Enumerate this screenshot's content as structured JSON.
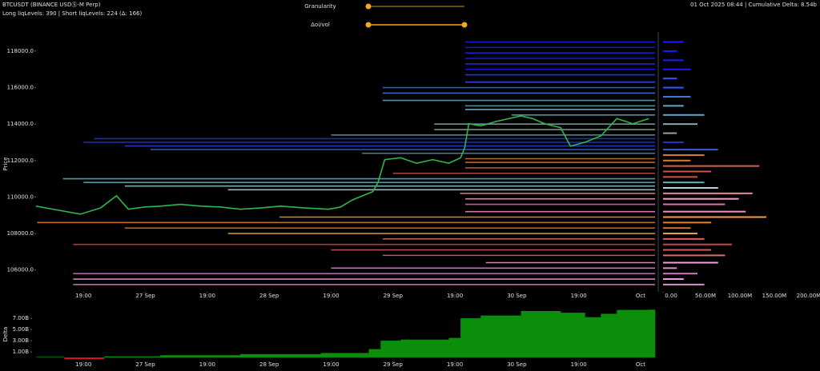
{
  "header": {
    "symbol": "BTCUSDT (BINANCE USDⓈ-M Perp)",
    "levels_info": "Long liqLevels: 390 | Short liqLevels: 224 (Δ: 166)",
    "timestamp_info": "01 Oct 2025 08:44 | Cumulative Delta: 8.54b"
  },
  "controls": [
    {
      "label": "Granularity"
    },
    {
      "label": "Δoi/vol"
    }
  ],
  "chart_data": [
    {
      "type": "line",
      "y_label": "Price",
      "xlim": [
        2.8,
        122.8
      ],
      "ylim": [
        104800,
        119050
      ],
      "xticks": [
        {
          "value": 12,
          "label": "19:00"
        },
        {
          "value": 24,
          "label": "27 Sep"
        },
        {
          "value": 36,
          "label": "19:00"
        },
        {
          "value": 48,
          "label": "28 Sep"
        },
        {
          "value": 60,
          "label": "19:00"
        },
        {
          "value": 72,
          "label": "29 Sep"
        },
        {
          "value": 84,
          "label": "19:00"
        },
        {
          "value": 96,
          "label": "30 Sep"
        },
        {
          "value": 108,
          "label": "19:00"
        },
        {
          "value": 120,
          "label": "Oct"
        }
      ],
      "yticks": [
        {
          "value": 106000,
          "label": "106000.0"
        },
        {
          "value": 108000,
          "label": "108000.0"
        },
        {
          "value": 110000,
          "label": "110000.0"
        },
        {
          "value": 112000,
          "label": "112000.0"
        },
        {
          "value": 114000,
          "label": "114000.0"
        },
        {
          "value": 116000,
          "label": "116000.0"
        },
        {
          "value": 118000,
          "label": "118000.0"
        }
      ],
      "x": [
        2.8,
        6.7,
        11.4,
        15.3,
        18.4,
        20.7,
        23.8,
        26.9,
        30.8,
        34.7,
        38.6,
        42.4,
        46.3,
        50.2,
        54.9,
        59.5,
        61.8,
        64.2,
        68.1,
        69.1,
        70.4,
        71.9,
        73.5,
        76.6,
        79.7,
        82.8,
        85.1,
        85.9,
        86.7,
        89.0,
        92.1,
        96.8,
        99.1,
        101.4,
        104.5,
        106.4,
        109.2,
        112.3,
        115.4,
        118.5,
        121.6
      ],
      "series": [
        {
          "color": "#2fb84a",
          "values": [
            109500,
            109300,
            109060,
            109400,
            110070,
            109330,
            109450,
            109500,
            109600,
            109500,
            109450,
            109330,
            109400,
            109500,
            109400,
            109330,
            109450,
            109850,
            110300,
            110800,
            112050,
            112100,
            112150,
            111850,
            112050,
            111850,
            112150,
            112700,
            114020,
            113900,
            114150,
            114450,
            114300,
            114020,
            113800,
            112790,
            113000,
            113350,
            114300,
            114020,
            114300
          ]
        }
      ],
      "levels": {
        "prices": [
          118500,
          118200,
          117900,
          117600,
          117300,
          117000,
          116700,
          116300,
          116000,
          115700,
          115300,
          115000,
          114800,
          114500,
          114000,
          113700,
          113400,
          113200,
          113000,
          112800,
          112600,
          112400,
          112100,
          111900,
          111600,
          111300,
          111000,
          110800,
          110600,
          110400,
          110200,
          109900,
          109600,
          109200,
          108900,
          108600,
          108300,
          108000,
          107700,
          107400,
          107100,
          106800,
          106400,
          106100,
          105800,
          105500,
          105200
        ],
        "starts": [
          86,
          86,
          86,
          86,
          86,
          86,
          86,
          86,
          70,
          70,
          70,
          86,
          86,
          95,
          80,
          80,
          60,
          14,
          12,
          20,
          25,
          66,
          86,
          86,
          86,
          72,
          8,
          12,
          20,
          40,
          85,
          86,
          86,
          86,
          50,
          3,
          20,
          40,
          70,
          10,
          60,
          70,
          90,
          60,
          10,
          10,
          10
        ],
        "colors": [
          "#1a1aff",
          "#1a1aff",
          "#2020f0",
          "#1a1aff",
          "#2a2af5",
          "#1a1aff",
          "#2a3aff",
          "#3355ff",
          "#3a66ee",
          "#4477dd",
          "#5fa8c8",
          "#5fa8c8",
          "#88bbcc",
          "#5fa8c8",
          "#88aaaa",
          "#8aa89a",
          "#6f8fa0",
          "#2233cc",
          "#2233cc",
          "#2a3fd0",
          "#3a5fcd",
          "#6f7fa0",
          "#e07a2a",
          "#e07a2a",
          "#d06040",
          "#d05050",
          "#5fb0c0",
          "#5fb0c0",
          "#8fc7d0",
          "#c0d0e0",
          "#e88aa0",
          "#f0a0c8",
          "#e070b0",
          "#f090c0",
          "#ff9a30",
          "#e0801e",
          "#d07030",
          "#f0a040",
          "#e06060",
          "#c84848",
          "#d05a5a",
          "#e06a6a",
          "#f0a0d8",
          "#e888d0",
          "#d870c0",
          "#f0a0e0",
          "#e090d0"
        ]
      }
    },
    {
      "type": "hbar",
      "xlim": [
        0,
        228000000
      ],
      "ylim": [
        104800,
        119050
      ],
      "xticks": [
        {
          "value": 0,
          "label": "0.00"
        },
        {
          "value": 50000000,
          "label": "50.00M"
        },
        {
          "value": 100000000,
          "label": "100.00M"
        },
        {
          "value": 150000000,
          "label": "150.00M"
        },
        {
          "value": 200000000,
          "label": "200.00M"
        }
      ],
      "prices": [
        105200,
        105500,
        105800,
        106100,
        106400,
        106800,
        107100,
        107400,
        107700,
        108000,
        108300,
        108600,
        108900,
        109200,
        109600,
        109900,
        110200,
        110500,
        110800,
        111100,
        111400,
        111700,
        112000,
        112300,
        112600,
        113000,
        113500,
        114000,
        114500,
        115000,
        115500,
        116000,
        116500,
        117000,
        117500,
        118000,
        118500
      ],
      "values": [
        60000000,
        30000000,
        50000000,
        20000000,
        80000000,
        90000000,
        70000000,
        100000000,
        60000000,
        50000000,
        40000000,
        70000000,
        150000000,
        120000000,
        90000000,
        110000000,
        130000000,
        80000000,
        60000000,
        50000000,
        70000000,
        140000000,
        40000000,
        60000000,
        80000000,
        30000000,
        20000000,
        50000000,
        60000000,
        30000000,
        40000000,
        30000000,
        20000000,
        40000000,
        30000000,
        20000000,
        30000000
      ],
      "colors": [
        "#e090d0",
        "#f0a0e0",
        "#d870c0",
        "#e888d0",
        "#f0a0d8",
        "#e06a6a",
        "#d05a5a",
        "#c84848",
        "#e06060",
        "#f0a040",
        "#d07030",
        "#e0801e",
        "#ff9a30",
        "#f090c0",
        "#e070b0",
        "#f0a0c8",
        "#e88aa0",
        "#c0d0e0",
        "#5fb0c0",
        "#d05050",
        "#d05050",
        "#d06040",
        "#e07a2a",
        "#e07a2a",
        "#3a5fcd",
        "#2233cc",
        "#8aa89a",
        "#88aaaa",
        "#5fa8c8",
        "#5fa8c8",
        "#4477dd",
        "#3355ff",
        "#3355ff",
        "#1a1aff",
        "#1a1aff",
        "#1a1aff",
        "#1a1aff"
      ]
    },
    {
      "type": "step",
      "y_label": "Delta",
      "xlim": [
        2.8,
        122.8
      ],
      "ylim": [
        -0.7,
        9.3
      ],
      "xticks": [
        {
          "value": 12,
          "label": "19:00"
        },
        {
          "value": 24,
          "label": "27 Sep"
        },
        {
          "value": 36,
          "label": "19:00"
        },
        {
          "value": 48,
          "label": "28 Sep"
        },
        {
          "value": 60,
          "label": "19:00"
        },
        {
          "value": 72,
          "label": "29 Sep"
        },
        {
          "value": 84,
          "label": "19:00"
        },
        {
          "value": 96,
          "label": "30 Sep"
        },
        {
          "value": 108,
          "label": "19:00"
        },
        {
          "value": 120,
          "label": "Oct"
        }
      ],
      "yticks": [
        {
          "value": 1,
          "label": "1.00B"
        },
        {
          "value": 3,
          "label": "3.00B"
        },
        {
          "value": 5,
          "label": "5.00B"
        },
        {
          "value": 7,
          "label": "7.00B"
        }
      ],
      "positive_color": "#0b8f0b",
      "negative_color": "#d01818",
      "x": [
        2.8,
        8.3,
        16.0,
        26.9,
        42.4,
        58.0,
        67.3,
        69.6,
        73.5,
        82.8,
        85.1,
        89.0,
        96.8,
        104.5,
        109.2,
        112.3,
        115.4,
        121.6
      ],
      "values": [
        0.1,
        -0.3,
        0.2,
        0.4,
        0.6,
        0.8,
        1.5,
        3.0,
        3.2,
        3.5,
        7.0,
        7.5,
        8.3,
        8.0,
        7.2,
        7.8,
        8.5,
        8.54
      ]
    }
  ]
}
